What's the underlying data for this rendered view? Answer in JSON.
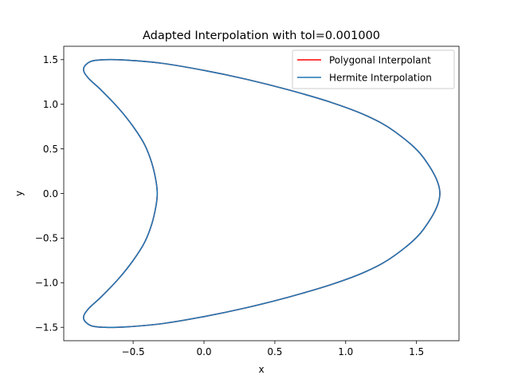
{
  "chart_data": {
    "type": "line",
    "title": "Adapted Interpolation with tol=0.001000",
    "xlabel": "x",
    "ylabel": "y",
    "xlim": [
      -0.99,
      1.8
    ],
    "ylim": [
      -1.65,
      1.65
    ],
    "xticks": [
      -0.5,
      0.0,
      0.5,
      1.0,
      1.5
    ],
    "xtick_labels": [
      "−0.5",
      "0.0",
      "0.5",
      "1.0",
      "1.5"
    ],
    "yticks": [
      -1.5,
      -1.0,
      -0.5,
      0.0,
      0.5,
      1.0,
      1.5
    ],
    "ytick_labels": [
      "−1.5",
      "−1.0",
      "−0.5",
      "0.0",
      "0.5",
      "1.0",
      "1.5"
    ],
    "grid": false,
    "legend_position": "top-right",
    "series": [
      {
        "name": "Polygonal Interpolant",
        "color": "#ff0000",
        "x": [
          1.665,
          1.55,
          1.35,
          1.15,
          0.9,
          0.6,
          0.3,
          0.0,
          -0.3,
          -0.55,
          -0.7,
          -0.8,
          -0.85,
          -0.82,
          -0.72,
          -0.6,
          -0.5,
          -0.42,
          -0.37,
          -0.34,
          -0.33,
          -0.34,
          -0.37,
          -0.42,
          -0.5,
          -0.6,
          -0.72,
          -0.82,
          -0.85,
          -0.8,
          -0.7,
          -0.55,
          -0.3,
          0.0,
          0.3,
          0.6,
          0.9,
          1.15,
          1.35,
          1.55,
          1.665
        ],
        "y": [
          0.0,
          0.4,
          0.69,
          0.87,
          1.02,
          1.16,
          1.28,
          1.38,
          1.46,
          1.495,
          1.5,
          1.48,
          1.4,
          1.3,
          1.15,
          0.95,
          0.75,
          0.55,
          0.35,
          0.15,
          0.0,
          -0.15,
          -0.35,
          -0.55,
          -0.75,
          -0.95,
          -1.15,
          -1.3,
          -1.4,
          -1.48,
          -1.5,
          -1.495,
          -1.46,
          -1.38,
          -1.28,
          -1.16,
          -1.02,
          -0.87,
          -0.69,
          -0.4,
          0.0
        ]
      },
      {
        "name": "Hermite Interpolation",
        "color": "#1f77b4",
        "x": [
          1.665,
          1.55,
          1.35,
          1.15,
          0.9,
          0.6,
          0.3,
          0.0,
          -0.3,
          -0.55,
          -0.7,
          -0.8,
          -0.85,
          -0.82,
          -0.72,
          -0.6,
          -0.5,
          -0.42,
          -0.37,
          -0.34,
          -0.33,
          -0.34,
          -0.37,
          -0.42,
          -0.5,
          -0.6,
          -0.72,
          -0.82,
          -0.85,
          -0.8,
          -0.7,
          -0.55,
          -0.3,
          0.0,
          0.3,
          0.6,
          0.9,
          1.15,
          1.35,
          1.55,
          1.665
        ],
        "y": [
          0.0,
          0.4,
          0.69,
          0.87,
          1.02,
          1.16,
          1.28,
          1.38,
          1.46,
          1.495,
          1.5,
          1.48,
          1.4,
          1.3,
          1.15,
          0.95,
          0.75,
          0.55,
          0.35,
          0.15,
          0.0,
          -0.15,
          -0.35,
          -0.55,
          -0.75,
          -0.95,
          -1.15,
          -1.3,
          -1.4,
          -1.48,
          -1.5,
          -1.495,
          -1.46,
          -1.38,
          -1.28,
          -1.16,
          -1.02,
          -0.87,
          -0.69,
          -0.4,
          0.0
        ]
      }
    ]
  }
}
